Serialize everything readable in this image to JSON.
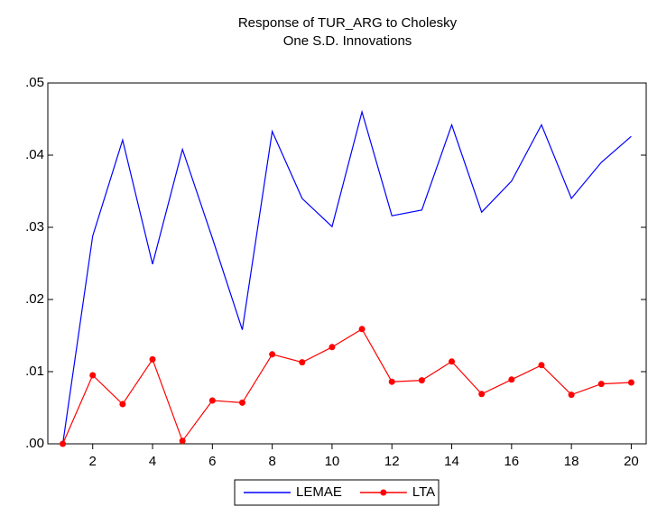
{
  "chart_data": {
    "type": "line",
    "title": "Response of TUR_ARG to Cholesky",
    "subtitle": "One S.D. Innovations",
    "x": [
      1,
      2,
      3,
      4,
      5,
      6,
      7,
      8,
      9,
      10,
      11,
      12,
      13,
      14,
      15,
      16,
      17,
      18,
      19,
      20
    ],
    "series": [
      {
        "name": "LEMAE",
        "color": "#0000ff",
        "marker": false,
        "values": [
          0,
          0.0288,
          0.0421,
          0.0249,
          0.0408,
          0.0285,
          0.0158,
          0.0433,
          0.034,
          0.0301,
          0.046,
          0.0316,
          0.0324,
          0.0442,
          0.0321,
          0.0364,
          0.0442,
          0.034,
          0.039,
          0.0426
        ]
      },
      {
        "name": "LTA",
        "color": "#ff0000",
        "marker": true,
        "values": [
          0,
          0.0095,
          0.0055,
          0.0117,
          0.0004,
          0.006,
          0.0057,
          0.0124,
          0.0113,
          0.0134,
          0.0159,
          0.0086,
          0.0088,
          0.0114,
          0.0069,
          0.0089,
          0.0109,
          0.0068,
          0.0083,
          0.0085
        ]
      }
    ],
    "xlim": [
      0.5,
      20.5
    ],
    "xticks": [
      2,
      4,
      6,
      8,
      10,
      12,
      14,
      16,
      18,
      20
    ],
    "ylim": [
      0,
      0.05
    ],
    "yticks": [
      {
        "value": 0,
        "label": ".00"
      },
      {
        "value": 0.01,
        "label": ".01"
      },
      {
        "value": 0.02,
        "label": ".02"
      },
      {
        "value": 0.03,
        "label": ".03"
      },
      {
        "value": 0.04,
        "label": ".04"
      },
      {
        "value": 0.05,
        "label": ".05"
      }
    ],
    "legend": "bottom"
  }
}
